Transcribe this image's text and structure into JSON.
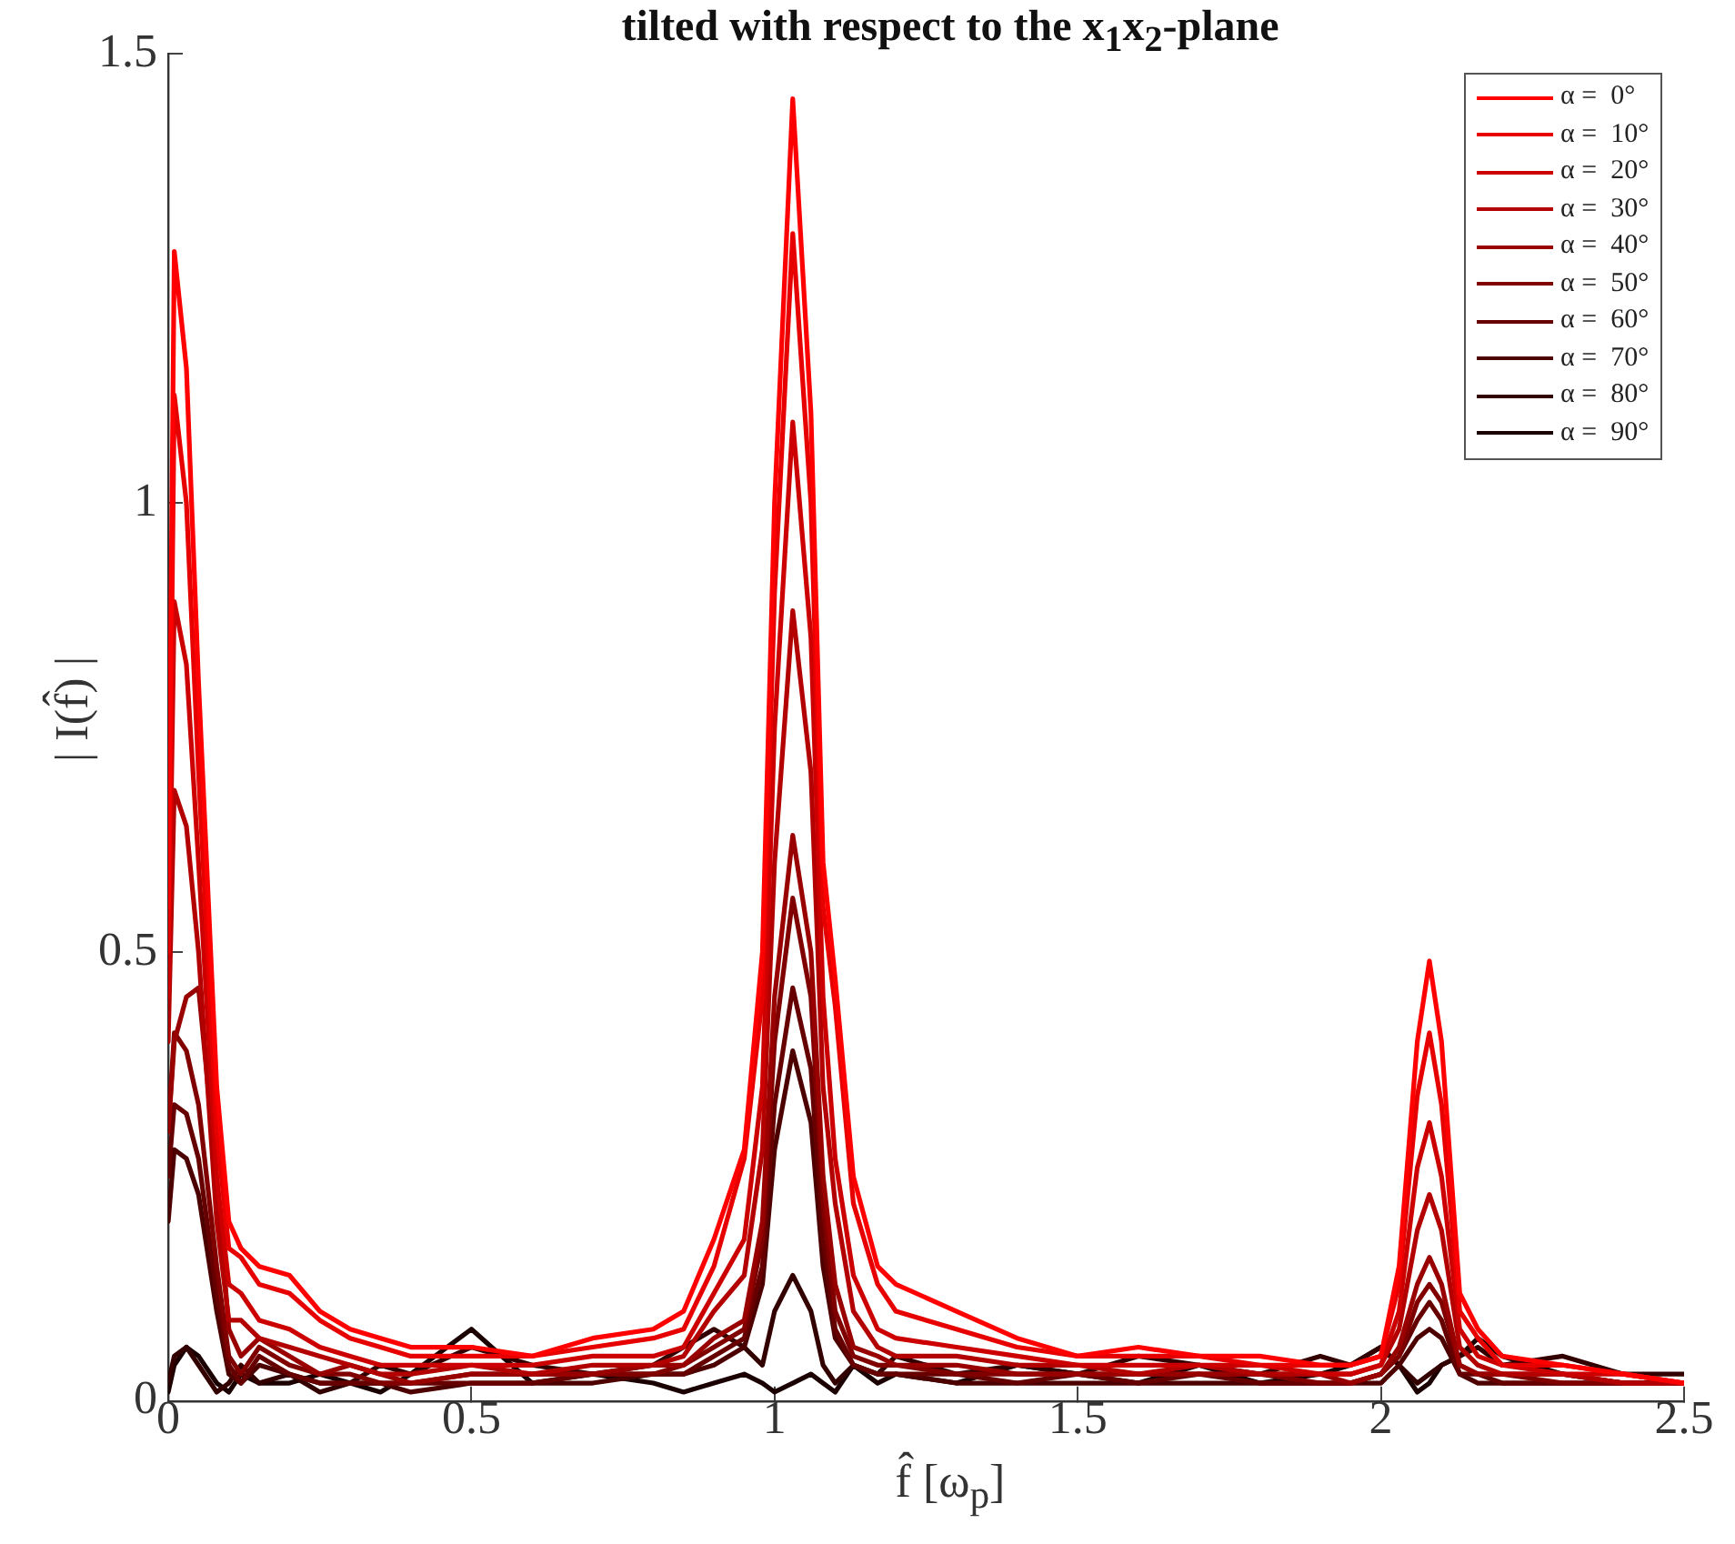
{
  "chart_data": {
    "type": "line",
    "title": "tilted with respect to the x$_{1}$x$_{2}$-plane",
    "xlabel": "f̂ [ω$_{p}$]",
    "ylabel": "| I(f̂) |",
    "x": [
      0,
      0.01,
      0.03,
      0.05,
      0.08,
      0.1,
      0.12,
      0.15,
      0.2,
      0.25,
      0.3,
      0.35,
      0.4,
      0.5,
      0.6,
      0.7,
      0.8,
      0.85,
      0.9,
      0.95,
      0.98,
      1.0,
      1.03,
      1.06,
      1.08,
      1.1,
      1.13,
      1.17,
      1.2,
      1.3,
      1.4,
      1.5,
      1.6,
      1.7,
      1.8,
      1.9,
      1.95,
      2.0,
      2.03,
      2.06,
      2.08,
      2.1,
      2.13,
      2.16,
      2.2,
      2.3,
      2.4,
      2.5
    ],
    "xlim": [
      0,
      2.5
    ],
    "xticks": [
      0,
      0.5,
      1,
      1.5,
      2,
      2.5
    ],
    "ylim": [
      0,
      1.5
    ],
    "yticks": [
      0,
      0.5,
      1,
      1.5
    ],
    "grid": false,
    "legend": "top right",
    "marker": "none",
    "line_style": "solid",
    "series": [
      {
        "name": "α =  0°",
        "color": "#ff0000",
        "values": [
          0.55,
          1.28,
          1.15,
          0.8,
          0.35,
          0.2,
          0.17,
          0.15,
          0.14,
          0.1,
          0.08,
          0.07,
          0.06,
          0.06,
          0.05,
          0.07,
          0.08,
          0.1,
          0.18,
          0.28,
          0.5,
          1.0,
          1.45,
          1.1,
          0.6,
          0.47,
          0.25,
          0.15,
          0.13,
          0.1,
          0.07,
          0.05,
          0.06,
          0.05,
          0.05,
          0.04,
          0.04,
          0.05,
          0.15,
          0.4,
          0.49,
          0.4,
          0.12,
          0.08,
          0.05,
          0.04,
          0.03,
          0.02
        ]
      },
      {
        "name": "α =  10°",
        "color": "#e60000",
        "values": [
          0.5,
          1.12,
          1.0,
          0.7,
          0.3,
          0.17,
          0.16,
          0.13,
          0.12,
          0.09,
          0.07,
          0.06,
          0.05,
          0.05,
          0.05,
          0.06,
          0.07,
          0.08,
          0.15,
          0.27,
          0.45,
          0.9,
          1.3,
          1.0,
          0.55,
          0.44,
          0.22,
          0.13,
          0.1,
          0.08,
          0.06,
          0.05,
          0.05,
          0.05,
          0.04,
          0.04,
          0.04,
          0.05,
          0.13,
          0.34,
          0.41,
          0.33,
          0.1,
          0.07,
          0.04,
          0.04,
          0.03,
          0.02
        ]
      },
      {
        "name": "α =  20°",
        "color": "#cc0000",
        "values": [
          0.45,
          0.89,
          0.82,
          0.6,
          0.25,
          0.13,
          0.12,
          0.09,
          0.08,
          0.06,
          0.05,
          0.04,
          0.04,
          0.04,
          0.04,
          0.05,
          0.05,
          0.06,
          0.12,
          0.18,
          0.35,
          0.75,
          1.09,
          0.85,
          0.45,
          0.27,
          0.14,
          0.08,
          0.07,
          0.06,
          0.05,
          0.04,
          0.04,
          0.04,
          0.04,
          0.03,
          0.03,
          0.04,
          0.1,
          0.26,
          0.31,
          0.25,
          0.08,
          0.05,
          0.04,
          0.03,
          0.03,
          0.02
        ]
      },
      {
        "name": "α =  30°",
        "color": "#b30000",
        "values": [
          0.4,
          0.68,
          0.64,
          0.5,
          0.2,
          0.09,
          0.09,
          0.07,
          0.06,
          0.05,
          0.04,
          0.03,
          0.03,
          0.04,
          0.03,
          0.04,
          0.04,
          0.05,
          0.1,
          0.14,
          0.28,
          0.6,
          0.88,
          0.7,
          0.35,
          0.22,
          0.1,
          0.06,
          0.05,
          0.05,
          0.04,
          0.04,
          0.03,
          0.04,
          0.03,
          0.03,
          0.03,
          0.04,
          0.08,
          0.19,
          0.23,
          0.19,
          0.06,
          0.04,
          0.03,
          0.03,
          0.02,
          0.02
        ]
      },
      {
        "name": "α =  40°",
        "color": "#990000",
        "values": [
          0.3,
          0.4,
          0.45,
          0.46,
          0.25,
          0.08,
          0.05,
          0.07,
          0.05,
          0.03,
          0.04,
          0.03,
          0.02,
          0.03,
          0.03,
          0.03,
          0.04,
          0.04,
          0.07,
          0.09,
          0.2,
          0.45,
          0.63,
          0.5,
          0.25,
          0.13,
          0.06,
          0.05,
          0.04,
          0.04,
          0.03,
          0.03,
          0.03,
          0.03,
          0.03,
          0.03,
          0.02,
          0.03,
          0.06,
          0.13,
          0.16,
          0.13,
          0.04,
          0.03,
          0.03,
          0.03,
          0.02,
          0.02
        ]
      },
      {
        "name": "α =  50°",
        "color": "#800000",
        "values": [
          0.3,
          0.41,
          0.39,
          0.33,
          0.15,
          0.05,
          0.03,
          0.06,
          0.04,
          0.03,
          0.03,
          0.02,
          0.02,
          0.03,
          0.03,
          0.03,
          0.03,
          0.04,
          0.06,
          0.08,
          0.18,
          0.4,
          0.56,
          0.45,
          0.22,
          0.1,
          0.05,
          0.04,
          0.04,
          0.03,
          0.03,
          0.03,
          0.03,
          0.03,
          0.03,
          0.02,
          0.02,
          0.03,
          0.05,
          0.11,
          0.13,
          0.11,
          0.04,
          0.03,
          0.03,
          0.02,
          0.02,
          0.02
        ]
      },
      {
        "name": "α =  60°",
        "color": "#660000",
        "values": [
          0.25,
          0.33,
          0.32,
          0.27,
          0.12,
          0.04,
          0.02,
          0.05,
          0.03,
          0.02,
          0.02,
          0.02,
          0.02,
          0.02,
          0.02,
          0.03,
          0.03,
          0.03,
          0.05,
          0.07,
          0.15,
          0.33,
          0.46,
          0.37,
          0.18,
          0.08,
          0.04,
          0.03,
          0.03,
          0.03,
          0.02,
          0.03,
          0.02,
          0.03,
          0.02,
          0.02,
          0.02,
          0.03,
          0.05,
          0.09,
          0.11,
          0.09,
          0.03,
          0.03,
          0.02,
          0.02,
          0.02,
          0.02
        ]
      },
      {
        "name": "α =  70°",
        "color": "#4d0000",
        "values": [
          0.2,
          0.28,
          0.27,
          0.23,
          0.1,
          0.03,
          0.02,
          0.04,
          0.03,
          0.02,
          0.02,
          0.02,
          0.01,
          0.02,
          0.02,
          0.02,
          0.03,
          0.03,
          0.04,
          0.06,
          0.13,
          0.28,
          0.39,
          0.31,
          0.15,
          0.07,
          0.04,
          0.03,
          0.03,
          0.02,
          0.02,
          0.02,
          0.02,
          0.02,
          0.02,
          0.02,
          0.02,
          0.02,
          0.04,
          0.07,
          0.08,
          0.07,
          0.03,
          0.02,
          0.02,
          0.02,
          0.02,
          0.02
        ]
      },
      {
        "name": "α =  80°",
        "color": "#330000",
        "values": [
          0.02,
          0.05,
          0.06,
          0.04,
          0.01,
          0.02,
          0.04,
          0.02,
          0.03,
          0.01,
          0.02,
          0.04,
          0.03,
          0.06,
          0.04,
          0.03,
          0.04,
          0.06,
          0.08,
          0.06,
          0.04,
          0.1,
          0.14,
          0.1,
          0.04,
          0.02,
          0.04,
          0.03,
          0.05,
          0.03,
          0.04,
          0.03,
          0.05,
          0.04,
          0.03,
          0.05,
          0.04,
          0.06,
          0.04,
          0.02,
          0.03,
          0.04,
          0.05,
          0.06,
          0.04,
          0.05,
          0.03,
          0.03
        ]
      },
      {
        "name": "α =  90°",
        "color": "#1a0000",
        "values": [
          0.01,
          0.04,
          0.06,
          0.05,
          0.02,
          0.01,
          0.03,
          0.02,
          0.02,
          0.03,
          0.02,
          0.01,
          0.03,
          0.08,
          0.02,
          0.03,
          0.02,
          0.01,
          0.02,
          0.03,
          0.02,
          0.01,
          0.02,
          0.03,
          0.02,
          0.01,
          0.04,
          0.02,
          0.03,
          0.02,
          0.04,
          0.03,
          0.02,
          0.04,
          0.02,
          0.03,
          0.04,
          0.06,
          0.04,
          0.01,
          0.02,
          0.04,
          0.05,
          0.07,
          0.05,
          0.03,
          0.02,
          0.02
        ]
      }
    ]
  }
}
